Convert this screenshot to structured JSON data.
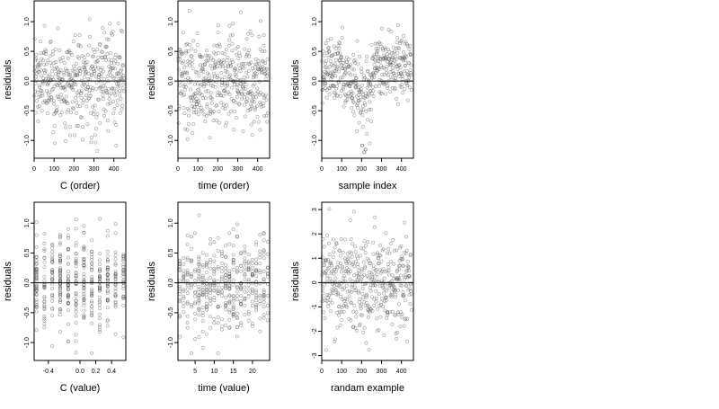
{
  "chart_data": [
    {
      "type": "scatter",
      "xlabel": "C (order)",
      "ylabel": "residuals",
      "xlim": [
        0,
        460
      ],
      "ylim": [
        -1.3,
        1.35
      ],
      "xticks": [
        0,
        100,
        200,
        300,
        400
      ],
      "xtick_labels": [
        "0",
        "100",
        "200",
        "300",
        "400"
      ],
      "yticks": [
        -1.0,
        -0.5,
        0.0,
        0.5,
        1.0
      ],
      "ytick_labels": [
        "-1.0",
        "-0.5",
        "0.0",
        "0.5",
        "1.0"
      ],
      "reference_line_y": 0,
      "point_style": "open-circle",
      "pattern": "order",
      "n_points": 450
    },
    {
      "type": "scatter",
      "xlabel": "time (order)",
      "ylabel": "residuals",
      "xlim": [
        0,
        460
      ],
      "ylim": [
        -1.3,
        1.35
      ],
      "xticks": [
        0,
        100,
        200,
        300,
        400
      ],
      "xtick_labels": [
        "0",
        "100",
        "200",
        "300",
        "400"
      ],
      "yticks": [
        -1.0,
        -0.5,
        0.0,
        0.5,
        1.0
      ],
      "ytick_labels": [
        "-1.0",
        "-0.5",
        "0.0",
        "0.5",
        "1.0"
      ],
      "reference_line_y": 0,
      "point_style": "open-circle",
      "pattern": "order",
      "n_points": 450
    },
    {
      "type": "scatter",
      "xlabel": "sample index",
      "ylabel": "residuals",
      "xlim": [
        0,
        460
      ],
      "ylim": [
        -1.3,
        1.35
      ],
      "xticks": [
        0,
        100,
        200,
        300,
        400
      ],
      "xtick_labels": [
        "0",
        "100",
        "200",
        "300",
        "400"
      ],
      "yticks": [
        -1.0,
        -0.5,
        0.0,
        0.5,
        1.0
      ],
      "ytick_labels": [
        "-1.0",
        "-0.5",
        "0.0",
        "0.5",
        "1.0"
      ],
      "reference_line_y": 0,
      "point_style": "open-circle",
      "pattern": "trend",
      "n_points": 450
    },
    {
      "type": "scatter",
      "xlabel": "C (value)",
      "ylabel": "residuals",
      "xlim": [
        -0.58,
        0.58
      ],
      "ylim": [
        -1.3,
        1.35
      ],
      "xticks": [
        -0.4,
        0.0,
        0.2,
        0.4
      ],
      "xtick_labels": [
        "-0.4",
        "0.0",
        "0.2",
        "0.4"
      ],
      "yticks": [
        -1.0,
        -0.5,
        0.0,
        0.5,
        1.0
      ],
      "ytick_labels": [
        "-1.0",
        "-0.5",
        "0.0",
        "0.5",
        "1.0"
      ],
      "reference_line_y": 0,
      "point_style": "open-circle",
      "pattern": "cvalue",
      "n_points": 450
    },
    {
      "type": "scatter",
      "xlabel": "time (value)",
      "ylabel": "residuals",
      "xlim": [
        0.5,
        24.5
      ],
      "ylim": [
        -1.3,
        1.35
      ],
      "xticks": [
        5,
        10,
        15,
        20
      ],
      "xtick_labels": [
        "5",
        "10",
        "15",
        "20"
      ],
      "yticks": [
        -1.0,
        -0.5,
        0.0,
        0.5,
        1.0
      ],
      "ytick_labels": [
        "-1.0",
        "-0.5",
        "0.0",
        "0.5",
        "1.0"
      ],
      "reference_line_y": 0,
      "point_style": "open-circle",
      "pattern": "tvalue",
      "n_points": 450
    },
    {
      "type": "scatter",
      "xlabel": "randam example",
      "ylabel": "residuals",
      "xlim": [
        0,
        460
      ],
      "ylim": [
        -3.2,
        3.3
      ],
      "xticks": [
        0,
        100,
        200,
        300,
        400
      ],
      "xtick_labels": [
        "0",
        "100",
        "200",
        "300",
        "400"
      ],
      "yticks": [
        -3,
        -2,
        -1,
        0,
        1,
        2,
        3
      ],
      "ytick_labels": [
        "-3",
        "-2",
        "-1",
        "0",
        "1",
        "2",
        "3"
      ],
      "reference_line_y": 0,
      "point_style": "open-circle",
      "pattern": "random",
      "n_points": 450
    }
  ],
  "colors": {
    "point_stroke": "#555555",
    "reference_line": "#000000",
    "frame": "#000000",
    "background": "#ffffff"
  }
}
